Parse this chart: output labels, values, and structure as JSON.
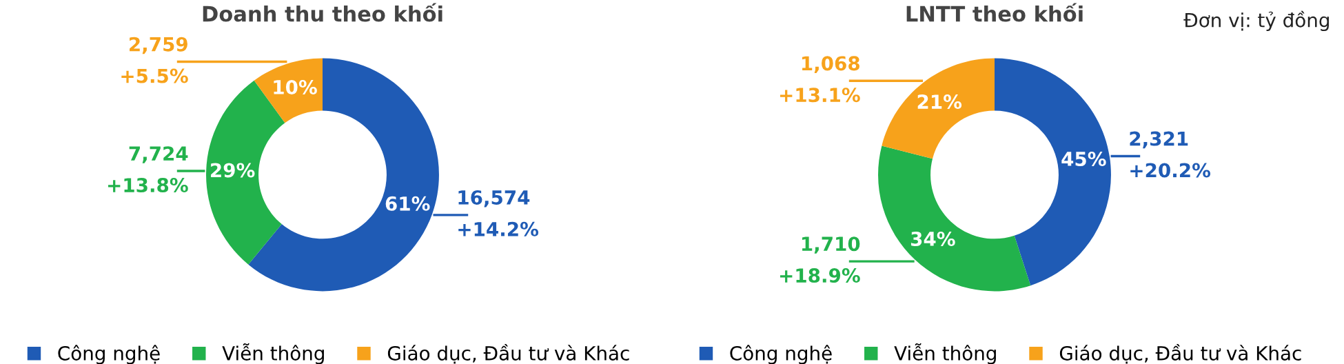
{
  "chart_data": [
    {
      "type": "donut",
      "title": "Doanh thu theo khối",
      "categories": [
        "Công nghệ",
        "Viễn thông",
        "Giáo dục, Đầu tư và Khác"
      ],
      "values": [
        61,
        29,
        10
      ],
      "colors": [
        "#1f5bb5",
        "#22b24c",
        "#f7a21b"
      ],
      "value_labels": [
        "61%",
        "29%",
        "10%"
      ],
      "annotations": [
        "16,574\n+14.2%",
        "7,724\n+13.8%",
        "2,759\n+5.5%"
      ],
      "legend": "bottom"
    },
    {
      "type": "donut",
      "title": "LNTT theo khối",
      "subtitle": "Đơn vị: tỷ đồng",
      "categories": [
        "Công nghệ",
        "Viễn thông",
        "Giáo dục, Đầu tư và Khác"
      ],
      "values": [
        45,
        34,
        21
      ],
      "colors": [
        "#1f5bb5",
        "#22b24c",
        "#f7a21b"
      ],
      "value_labels": [
        "45%",
        "34%",
        "21%"
      ],
      "annotations": [
        "2,321\n+20.2%",
        "1,710\n+18.9%",
        "1,068\n+13.1%"
      ],
      "legend": "bottom"
    }
  ]
}
